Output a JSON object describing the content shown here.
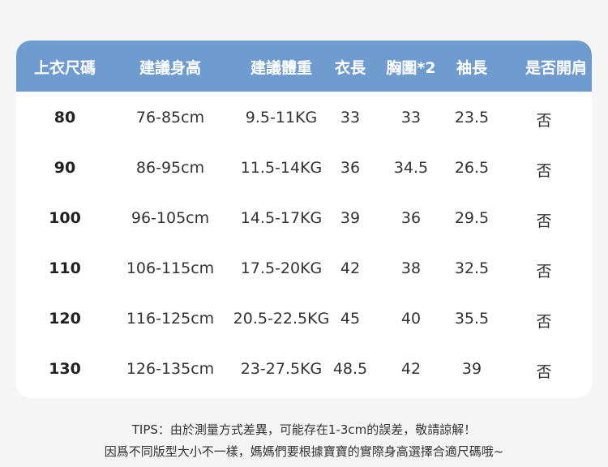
{
  "table": {
    "headers": [
      "上衣尺碼",
      "建議身高",
      "建議體重",
      "衣長",
      "胸圍*2",
      "袖長",
      "是否開肩"
    ],
    "rows": [
      [
        "80",
        "76-85cm",
        "9.5-11KG",
        "33",
        "33",
        "23.5",
        "否"
      ],
      [
        "90",
        "86-95cm",
        "11.5-14KG",
        "36",
        "34.5",
        "26.5",
        "否"
      ],
      [
        "100",
        "96-105cm",
        "14.5-17KG",
        "39",
        "36",
        "29.5",
        "否"
      ],
      [
        "110",
        "106-115cm",
        "17.5-20KG",
        "42",
        "38",
        "32.5",
        "否"
      ],
      [
        "120",
        "116-125cm",
        "20.5-22.5KG",
        "45",
        "40",
        "35.5",
        "否"
      ],
      [
        "130",
        "126-135cm",
        "23-27.5KG",
        "48.5",
        "42",
        "39",
        "否"
      ]
    ]
  },
  "tips": {
    "line1": "TIPS：由於測量方式差異，可能存在1-3cm的誤差，敬請諒解！",
    "line2": "因爲不同版型大小不一樣，媽媽們要根據寶寶的實際身高選擇合適尺碼哦~"
  },
  "colors": {
    "header_bg": "#6f9ccf",
    "header_text": "#ffffff",
    "page_bg": "#f5f5f5"
  }
}
